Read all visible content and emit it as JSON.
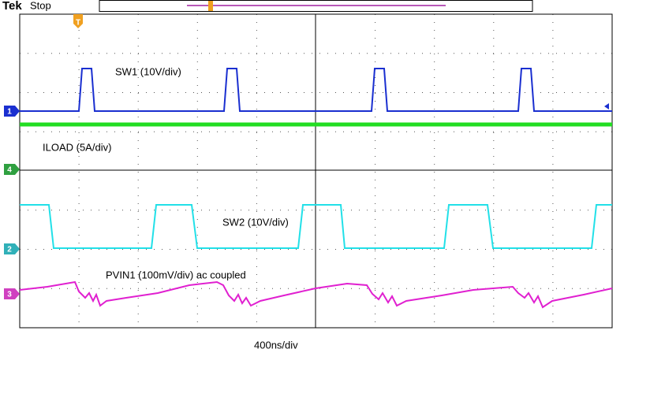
{
  "header": {
    "brand": "Tek",
    "status": "Stop"
  },
  "trigger": {
    "label": "T"
  },
  "channels": [
    {
      "number": "1",
      "label": "SW1 (10V/div)"
    },
    {
      "number": "4",
      "label": "ILOAD (5A/div)"
    },
    {
      "number": "2",
      "label": "SW2 (10V/div)"
    },
    {
      "number": "3",
      "label": "PVIN1 (100mV/div) ac coupled"
    }
  ],
  "timebase": "400ns/div"
}
